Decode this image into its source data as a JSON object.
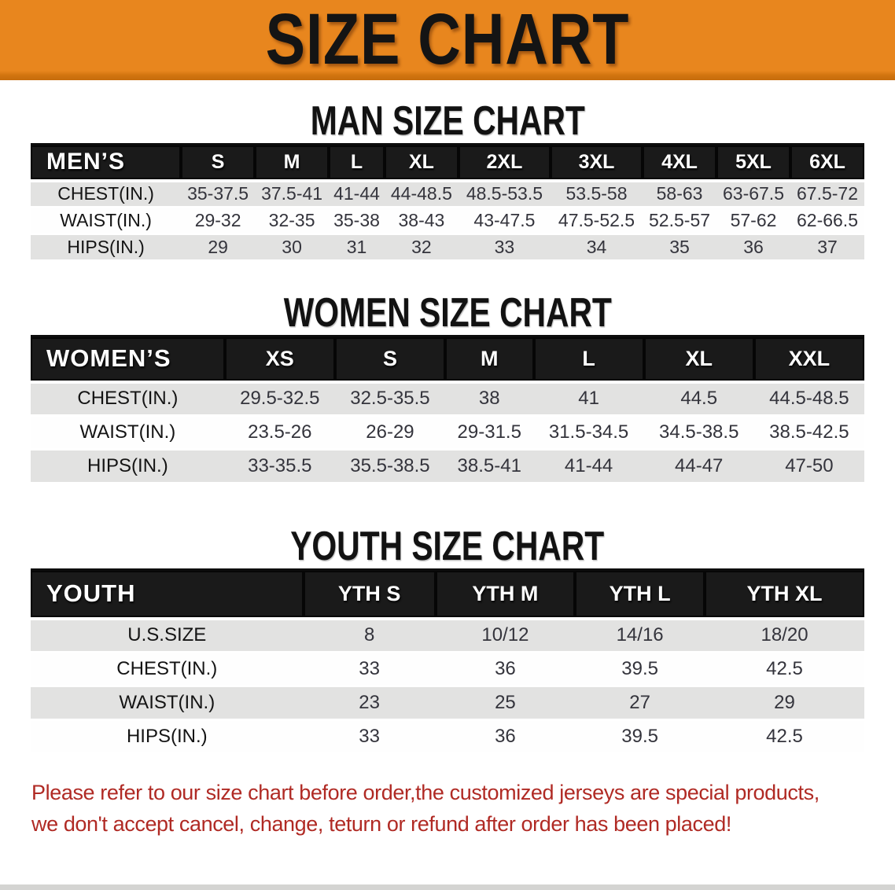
{
  "colors": {
    "accent": "#e8861e",
    "header_black": "#1a1a1a",
    "row_gray": "#e2e2e1",
    "warn_red": "#b02a24"
  },
  "banner": {
    "title": "SIZE CHART"
  },
  "men": {
    "heading": "MAN SIZE CHART",
    "table": {
      "header_label": "MEN’S",
      "columns": [
        "S",
        "M",
        "L",
        "XL",
        "2XL",
        "3XL",
        "4XL",
        "5XL",
        "6XL"
      ],
      "rows": [
        {
          "label": "CHEST(IN.)",
          "values": [
            "35-37.5",
            "37.5-41",
            "41-44",
            "44-48.5",
            "48.5-53.5",
            "53.5-58",
            "58-63",
            "63-67.5",
            "67.5-72"
          ]
        },
        {
          "label": "WAIST(IN.)",
          "values": [
            "29-32",
            "32-35",
            "35-38",
            "38-43",
            "43-47.5",
            "47.5-52.5",
            "52.5-57",
            "57-62",
            "62-66.5"
          ]
        },
        {
          "label": "HIPS(IN.)",
          "values": [
            "29",
            "30",
            "31",
            "32",
            "33",
            "34",
            "35",
            "36",
            "37"
          ]
        }
      ]
    }
  },
  "women": {
    "heading": "WOMEN SIZE CHART",
    "table": {
      "header_label": "WOMEN’S",
      "columns": [
        "XS",
        "S",
        "M",
        "L",
        "XL",
        "XXL"
      ],
      "rows": [
        {
          "label": "CHEST(IN.)",
          "values": [
            "29.5-32.5",
            "32.5-35.5",
            "38",
            "41",
            "44.5",
            "44.5-48.5"
          ]
        },
        {
          "label": "WAIST(IN.)",
          "values": [
            "23.5-26",
            "26-29",
            "29-31.5",
            "31.5-34.5",
            "34.5-38.5",
            "38.5-42.5"
          ]
        },
        {
          "label": "HIPS(IN.)",
          "values": [
            "33-35.5",
            "35.5-38.5",
            "38.5-41",
            "41-44",
            "44-47",
            "47-50"
          ]
        }
      ]
    }
  },
  "youth": {
    "heading": "YOUTH SIZE CHART",
    "table": {
      "header_label": "YOUTH",
      "columns": [
        "YTH S",
        "YTH M",
        "YTH L",
        "YTH XL"
      ],
      "rows": [
        {
          "label": "U.S.SIZE",
          "values": [
            "8",
            "10/12",
            "14/16",
            "18/20"
          ]
        },
        {
          "label": "CHEST(IN.)",
          "values": [
            "33",
            "36",
            "39.5",
            "42.5"
          ]
        },
        {
          "label": "WAIST(IN.)",
          "values": [
            "23",
            "25",
            "27",
            "29"
          ]
        },
        {
          "label": "HIPS(IN.)",
          "values": [
            "33",
            "36",
            "39.5",
            "42.5"
          ]
        }
      ]
    }
  },
  "disclaimer": {
    "line1": "Please refer to our size chart before order,the customized jerseys are special products,",
    "line2": "we don't accept cancel, change, teturn or refund after order has been placed!"
  }
}
